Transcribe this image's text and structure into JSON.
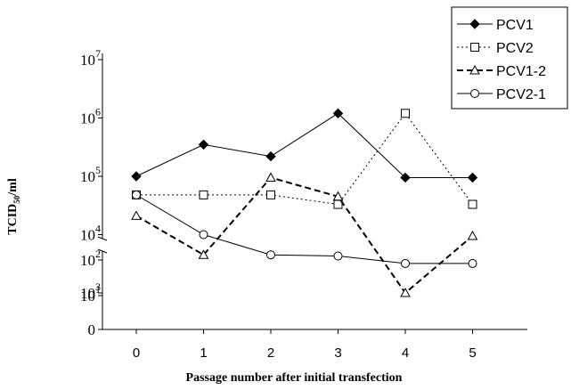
{
  "chart_data": {
    "type": "line",
    "title": "",
    "xlabel": "Passage number after initial transfection",
    "ylabel": "TCID50/ml",
    "ylabel_main": "TCID",
    "ylabel_sub": "50",
    "ylabel_suffix": "/ml",
    "y_scale": "log10 with axis break between 10^2 and 10^3",
    "x": [
      0,
      1,
      2,
      3,
      4,
      5
    ],
    "x_tick_labels": [
      "0",
      "1",
      "2",
      "3",
      "4",
      "5"
    ],
    "y_tick_labels": [
      {
        "base": "0",
        "exp": ""
      },
      {
        "base": "10",
        "exp": "1"
      },
      {
        "base": "10",
        "exp": "2"
      },
      {
        "base": "10",
        "exp": "3"
      },
      {
        "base": "10",
        "exp": "4"
      },
      {
        "base": "10",
        "exp": "5"
      },
      {
        "base": "10",
        "exp": "6"
      },
      {
        "base": "10",
        "exp": "7"
      }
    ],
    "legend_position": "top-right",
    "series": [
      {
        "name": "PCV1",
        "values": [
          100000,
          350000,
          220000,
          1200000,
          95000,
          95000
        ],
        "marker": "diamond-filled",
        "dash": "solid",
        "color": "#000000"
      },
      {
        "name": "PCV2",
        "values": [
          48000,
          48000,
          48000,
          33000,
          1200000,
          33000
        ],
        "marker": "square-open",
        "dash": "dotted",
        "color": "#000000"
      },
      {
        "name": "PCV1-2",
        "values": [
          21000,
          4500,
          95000,
          45000,
          1000,
          9500
        ],
        "marker": "triangle-open",
        "dash": "dashed",
        "color": "#000000"
      },
      {
        "name": "PCV2-1",
        "values": [
          48000,
          10000,
          4500,
          4300,
          3200,
          3200
        ],
        "marker": "circle-open",
        "dash": "solid",
        "color": "#000000"
      }
    ]
  }
}
